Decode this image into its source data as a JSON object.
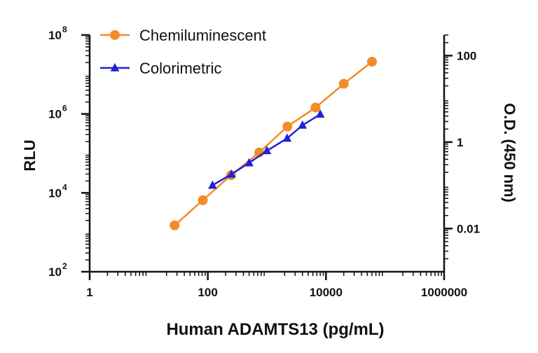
{
  "chart_data": {
    "type": "scatter",
    "xlabel": "Human ADAMTS13 (pg/mL)",
    "ylabel_left": "RLU",
    "ylabel_right": "O.D. (450 nm)",
    "x_scale": "log",
    "y_left_scale": "log",
    "y_right_scale": "log",
    "xlim": [
      1,
      1000000
    ],
    "ylim_left": [
      100,
      100000000
    ],
    "ylim_right": [
      0.001,
      300
    ],
    "grid": false,
    "legend_placement": "top-left",
    "x_ticks": [
      {
        "value": 1,
        "label": "1"
      },
      {
        "value": 100,
        "label": "100"
      },
      {
        "value": 10000,
        "label": "10000"
      },
      {
        "value": 1000000,
        "label": "1000000"
      }
    ],
    "y_left_ticks": [
      {
        "value": 100,
        "base": "10",
        "exp": "2"
      },
      {
        "value": 10000,
        "base": "10",
        "exp": "4"
      },
      {
        "value": 1000000,
        "base": "10",
        "exp": "6"
      },
      {
        "value": 100000000,
        "base": "10",
        "exp": "8"
      }
    ],
    "y_right_ticks": [
      {
        "value": 0.01,
        "label": "0.01"
      },
      {
        "value": 1,
        "label": "1"
      },
      {
        "value": 100,
        "label": "100"
      }
    ],
    "series": [
      {
        "name": "Chemiluminescent",
        "axis": "left",
        "color": "#f28c28",
        "marker": "circle",
        "x": [
          27.4,
          82.3,
          247,
          741,
          2222,
          6667,
          20000,
          60000
        ],
        "y": [
          1500,
          6500,
          28000,
          105000,
          480000,
          1450000,
          5800000,
          21000000
        ]
      },
      {
        "name": "Colorimetric",
        "axis": "right",
        "color": "#1f22d6",
        "marker": "triangle",
        "x": [
          120,
          250,
          500,
          1000,
          2200,
          4000,
          8000
        ],
        "y": [
          0.1,
          0.18,
          0.33,
          0.63,
          1.22,
          2.45,
          4.4
        ]
      }
    ]
  }
}
